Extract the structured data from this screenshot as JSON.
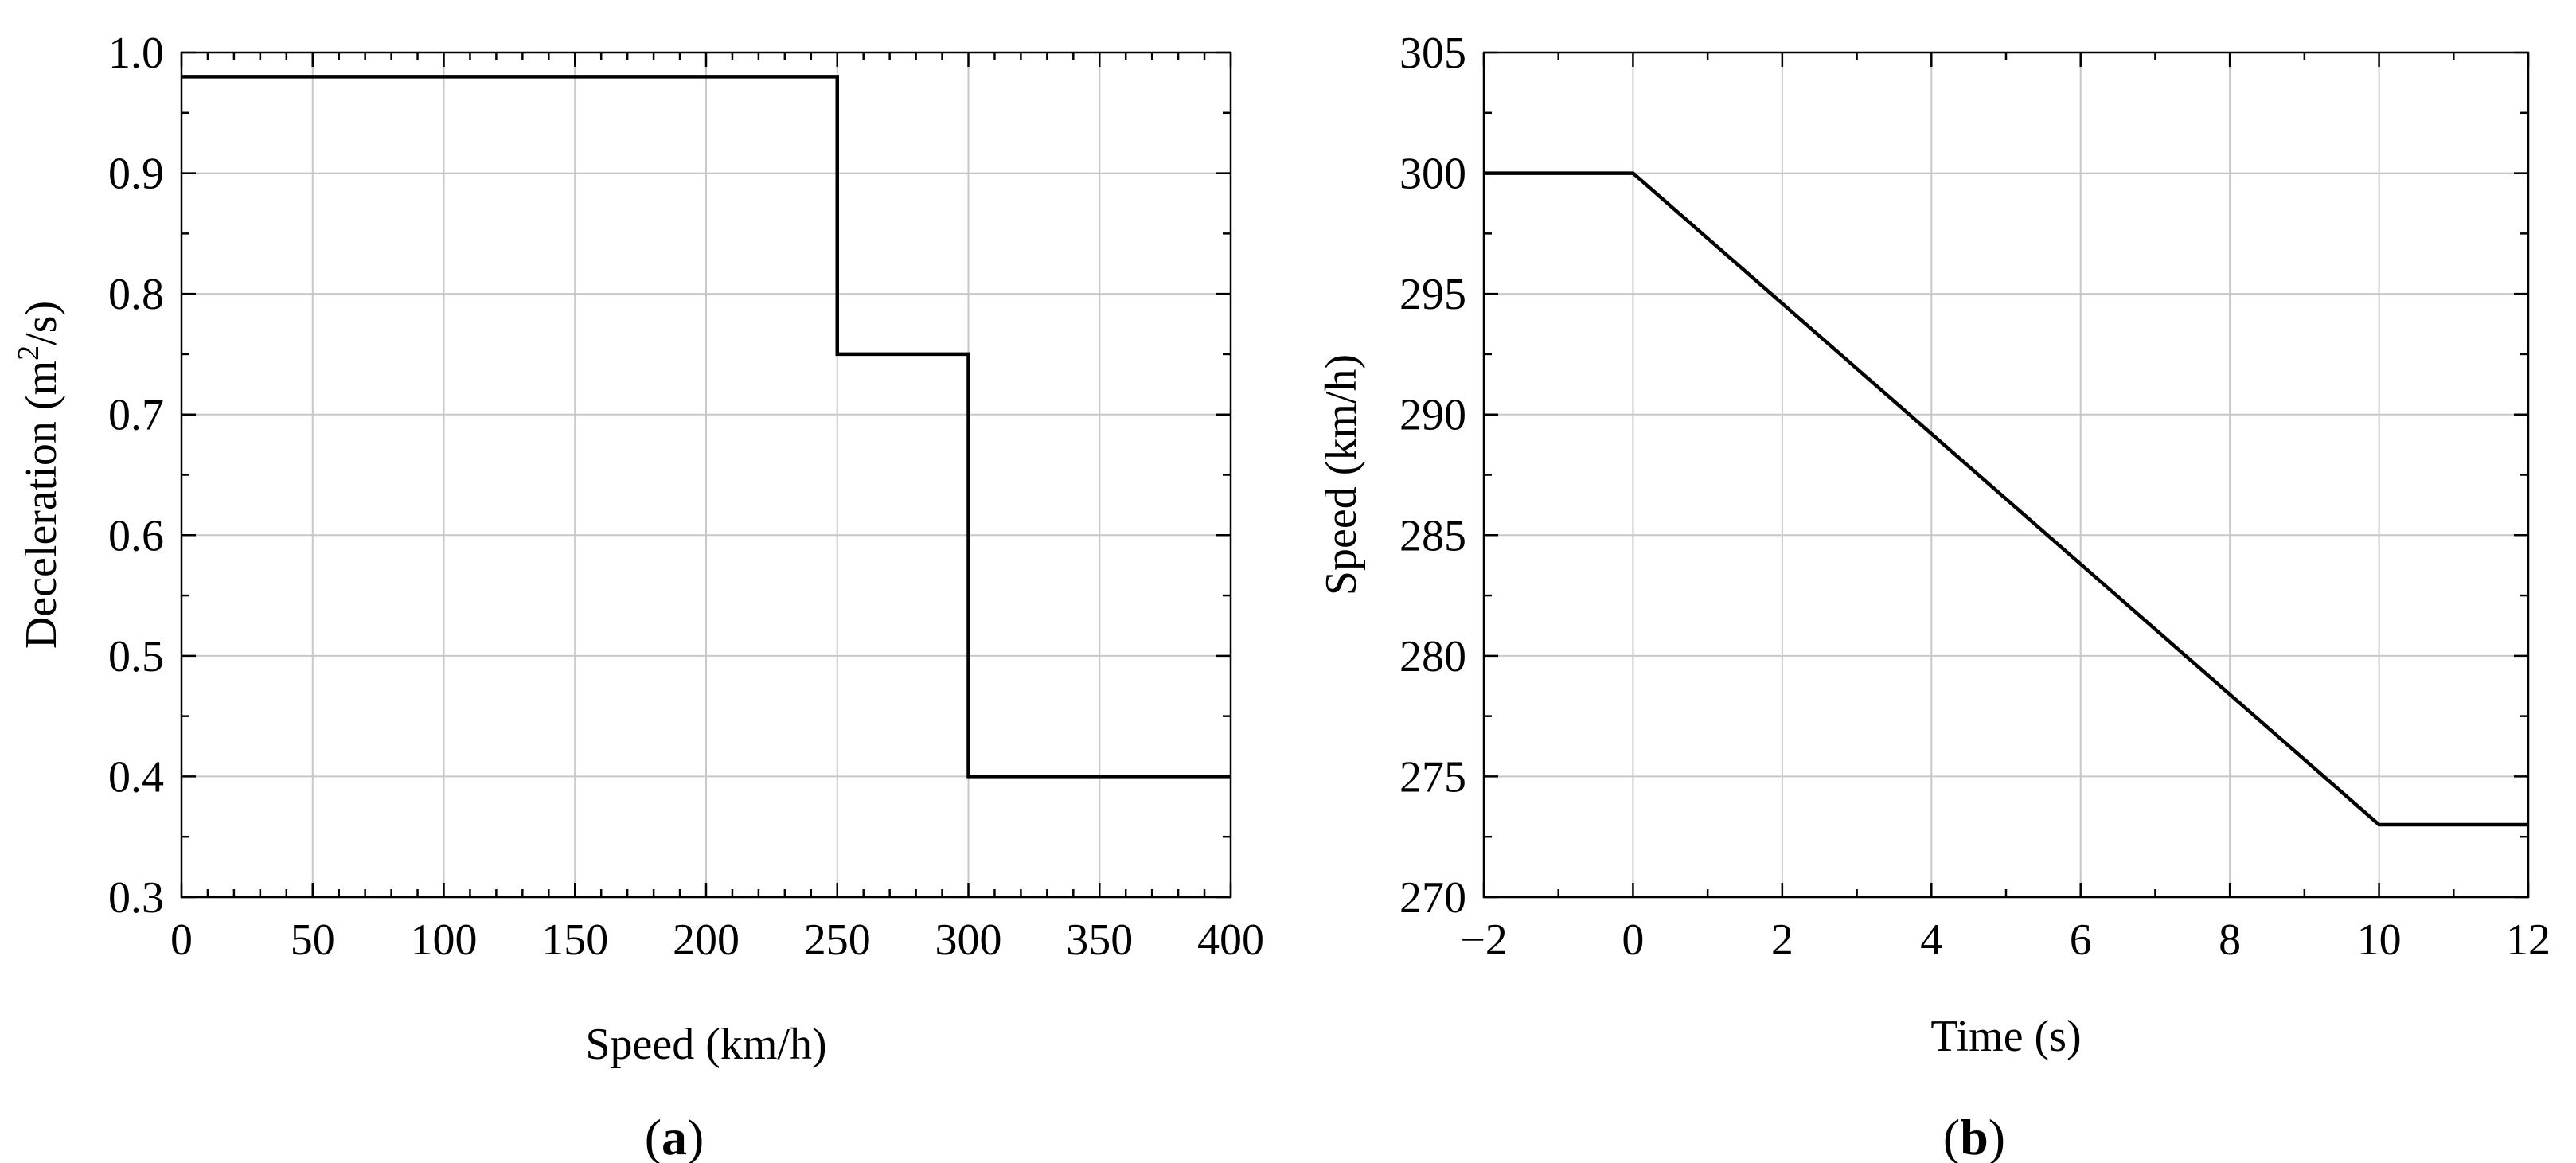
{
  "chart_data": [
    {
      "id": "a",
      "type": "line",
      "panel_label": "a",
      "xlabel": "Speed (km/h)",
      "ylabel_prefix": "Deceleration (m",
      "ylabel_sup": "2",
      "ylabel_suffix": "/s)",
      "xlim": [
        0,
        400
      ],
      "ylim": [
        0.3,
        1.0
      ],
      "xticks": [
        0,
        50,
        100,
        150,
        200,
        250,
        300,
        350,
        400
      ],
      "yticks": [
        0.3,
        0.4,
        0.5,
        0.6,
        0.7,
        0.8,
        0.9,
        1.0
      ],
      "xtick_labels": [
        "0",
        "50",
        "100",
        "150",
        "200",
        "250",
        "300",
        "350",
        "400"
      ],
      "ytick_labels": [
        "0.3",
        "0.4",
        "0.5",
        "0.6",
        "0.7",
        "0.8",
        "0.9",
        "1.0"
      ],
      "grid": true,
      "series": [
        {
          "x": [
            0,
            250,
            250,
            300,
            300,
            400
          ],
          "y": [
            0.98,
            0.98,
            0.75,
            0.75,
            0.4,
            0.4
          ]
        }
      ]
    },
    {
      "id": "b",
      "type": "line",
      "panel_label": "b",
      "xlabel": "Time (s)",
      "ylabel": "Speed (km/h)",
      "xlim": [
        -2,
        12
      ],
      "ylim": [
        270,
        305
      ],
      "xticks": [
        -2,
        0,
        2,
        4,
        6,
        8,
        10,
        12
      ],
      "yticks": [
        270,
        275,
        280,
        285,
        290,
        295,
        300,
        305
      ],
      "xtick_labels": [
        "−2",
        "0",
        "2",
        "4",
        "6",
        "8",
        "10",
        "12"
      ],
      "ytick_labels": [
        "270",
        "275",
        "280",
        "285",
        "290",
        "295",
        "300",
        "305"
      ],
      "grid": true,
      "series": [
        {
          "x": [
            -2,
            0,
            10,
            12
          ],
          "y": [
            300,
            300,
            273,
            273
          ]
        }
      ]
    }
  ]
}
